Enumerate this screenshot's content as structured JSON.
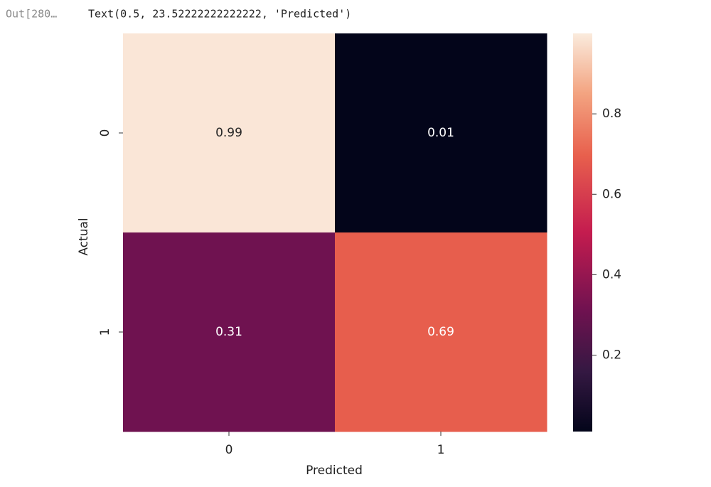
{
  "cell": {
    "prompt": "Out[280…",
    "output": "Text(0.5, 23.52222222222222, 'Predicted')"
  },
  "chart_data": {
    "type": "heatmap",
    "x_categories": [
      "0",
      "1"
    ],
    "y_categories": [
      "0",
      "1"
    ],
    "values": [
      [
        0.99,
        0.01
      ],
      [
        0.31,
        0.69
      ]
    ],
    "xlabel": "Predicted",
    "ylabel": "Actual",
    "colormap": "rocket",
    "colorbar_lim": [
      0.01,
      1.0
    ],
    "colorbar_ticks": [
      0.2,
      0.4,
      0.6,
      0.8
    ]
  }
}
